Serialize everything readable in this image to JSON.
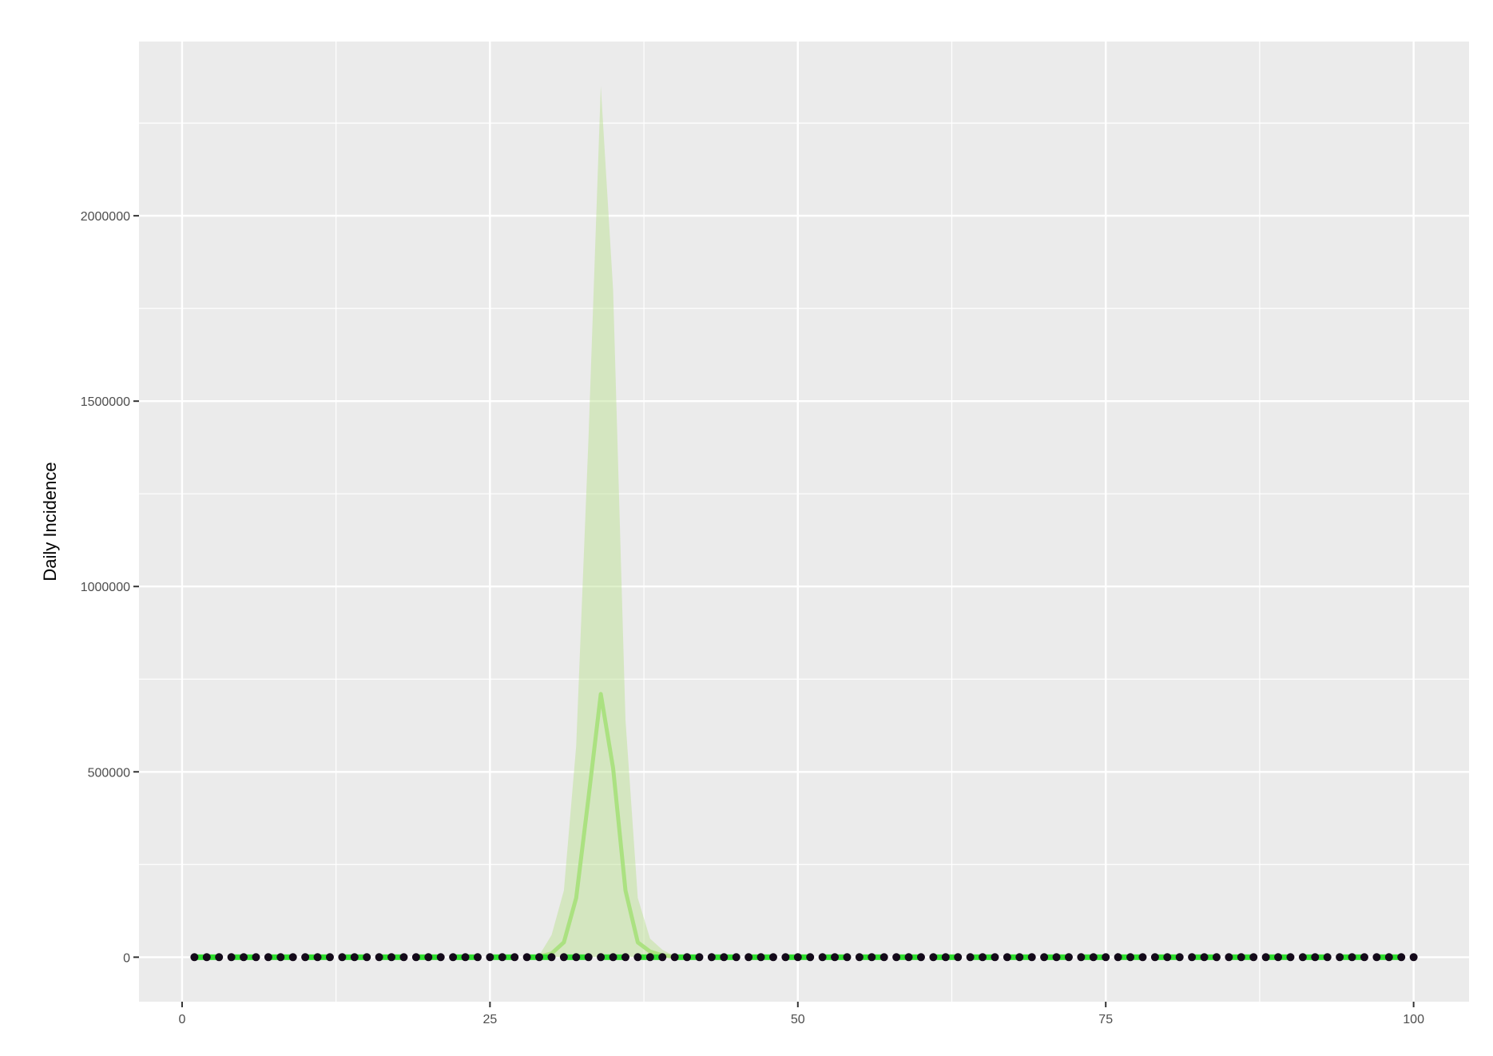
{
  "chart_data": {
    "type": "line",
    "title": "",
    "xlabel": "",
    "ylabel": "Daily Incidence",
    "xlim": [
      -3.5,
      104.5
    ],
    "ylim": [
      -120000,
      2470000
    ],
    "x_ticks": [
      0,
      25,
      50,
      75,
      100
    ],
    "x_tick_labels": [
      "0",
      "25",
      "50",
      "75",
      "100"
    ],
    "y_ticks": [
      0,
      500000,
      1000000,
      1500000,
      2000000
    ],
    "y_tick_labels": [
      "0",
      "500000",
      "1000000",
      "1500000",
      "2000000"
    ],
    "grid": true,
    "legend": "none",
    "colors": {
      "panel_background": "#ebebeb",
      "grid_line": "#ffffff",
      "ribbon_fill": "#b8e08c",
      "model_line": "#a6e07a",
      "observed_line": "#2ee02e",
      "observed_points": "#140a1a"
    },
    "band": {
      "name": "",
      "x": [
        29,
        30,
        31,
        32,
        33,
        34,
        35,
        36,
        37,
        38,
        39,
        40
      ],
      "lower": [
        0,
        0,
        0,
        0,
        0,
        0,
        0,
        0,
        0,
        0,
        0,
        0
      ],
      "upper": [
        5000,
        60000,
        180000,
        570000,
        1400000,
        2350000,
        1800000,
        640000,
        160000,
        50000,
        20000,
        3000
      ]
    },
    "series": [
      {
        "name": "",
        "style": "model_line",
        "x": [
          29,
          30,
          31,
          32,
          33,
          34,
          35,
          36,
          37,
          38,
          39,
          40
        ],
        "values": [
          2000,
          10000,
          40000,
          160000,
          430000,
          710000,
          510000,
          180000,
          40000,
          15000,
          5000,
          1000
        ]
      },
      {
        "name": "",
        "style": "observed",
        "x_range": [
          1,
          100
        ],
        "values_constant": 0
      }
    ]
  }
}
